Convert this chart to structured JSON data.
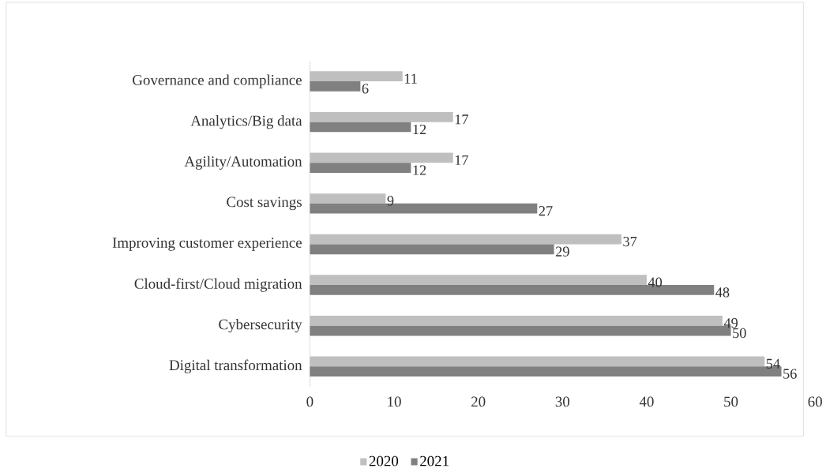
{
  "chart_data": {
    "type": "bar",
    "orientation": "horizontal",
    "categories": [
      "Governance and compliance",
      "Analytics/Big data",
      "Agility/Automation",
      "Cost savings",
      "Improving customer experience",
      "Cloud-first/Cloud migration",
      "Cybersecurity",
      "Digital transformation"
    ],
    "series": [
      {
        "name": "2020",
        "color": "#bfbfbf",
        "values": [
          11,
          17,
          17,
          9,
          37,
          40,
          49,
          54
        ]
      },
      {
        "name": "2021",
        "color": "#808080",
        "values": [
          6,
          12,
          12,
          27,
          29,
          48,
          50,
          56
        ]
      }
    ],
    "xlim": [
      0,
      60
    ],
    "xticks": [
      0,
      10,
      20,
      30,
      40,
      50,
      60
    ],
    "data_labels": true,
    "legend": "bottom",
    "grid": false
  }
}
